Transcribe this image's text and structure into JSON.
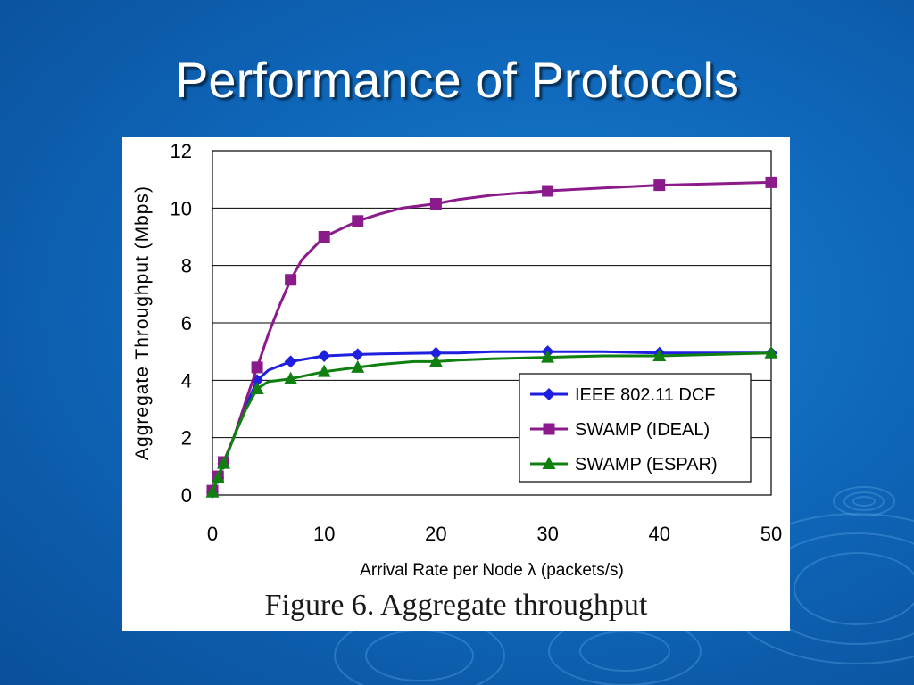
{
  "slide": {
    "title": "Performance of Protocols",
    "background_color": "#0f68bb"
  },
  "figure": {
    "caption": "Figure 6. Aggregate throughput"
  },
  "chart_data": {
    "type": "line",
    "title": "",
    "xlabel": "Arrival Rate per Node λ (packets/s)",
    "ylabel": "Aggregate Throughput (Mbps)",
    "xlim": [
      0,
      50
    ],
    "ylim": [
      0,
      12
    ],
    "xticks": [
      0,
      10,
      20,
      30,
      40,
      50
    ],
    "yticks": [
      0,
      2,
      4,
      6,
      8,
      10,
      12
    ],
    "grid": "horizontal",
    "legend_position": "bottom-right",
    "series": [
      {
        "name": "IEEE 802.11 DCF",
        "color": "#1f1fe0",
        "marker": "diamond",
        "x": [
          0,
          0.5,
          1,
          4,
          7,
          10,
          13,
          20,
          30,
          40,
          50
        ],
        "y": [
          0.1,
          0.6,
          1.1,
          4.0,
          4.65,
          4.85,
          4.9,
          4.95,
          5.0,
          4.95,
          4.95
        ],
        "curve_x": [
          0,
          0.5,
          1,
          2,
          3,
          4,
          5,
          7,
          10,
          13,
          15,
          20,
          22,
          25,
          30,
          35,
          40,
          45,
          50
        ],
        "curve_y": [
          0.1,
          0.6,
          1.1,
          2.1,
          3.1,
          4.0,
          4.35,
          4.65,
          4.85,
          4.9,
          4.92,
          4.95,
          4.95,
          5.0,
          5.0,
          5.0,
          4.95,
          4.95,
          4.95
        ]
      },
      {
        "name": "SWAMP (IDEAL)",
        "color": "#8b1a8b",
        "marker": "square",
        "x": [
          0,
          0.5,
          1,
          4,
          7,
          10,
          13,
          20,
          30,
          40,
          50
        ],
        "y": [
          0.15,
          0.65,
          1.15,
          4.45,
          7.5,
          9.0,
          9.55,
          10.15,
          10.6,
          10.8,
          10.9
        ],
        "curve_x": [
          0,
          0.5,
          1,
          2,
          3,
          4,
          5,
          6,
          7,
          8,
          10,
          13,
          15,
          17,
          20,
          22,
          25,
          30,
          35,
          40,
          45,
          50
        ],
        "curve_y": [
          0.15,
          0.65,
          1.15,
          2.1,
          3.3,
          4.45,
          5.6,
          6.6,
          7.5,
          8.2,
          9.0,
          9.55,
          9.8,
          10.0,
          10.15,
          10.3,
          10.45,
          10.6,
          10.7,
          10.8,
          10.85,
          10.9
        ]
      },
      {
        "name": "SWAMP (ESPAR)",
        "color": "#0f7f10",
        "marker": "triangle",
        "x": [
          0,
          0.5,
          1,
          4,
          7,
          10,
          13,
          20,
          30,
          40,
          50
        ],
        "y": [
          0.1,
          0.6,
          1.1,
          3.7,
          4.05,
          4.3,
          4.45,
          4.65,
          4.8,
          4.85,
          4.95
        ],
        "curve_x": [
          0,
          0.5,
          1,
          2,
          3,
          4,
          5,
          7,
          10,
          12,
          13,
          15,
          18,
          20,
          22,
          25,
          30,
          35,
          40,
          45,
          50
        ],
        "curve_y": [
          0.1,
          0.6,
          1.1,
          2.1,
          3.0,
          3.7,
          3.95,
          4.05,
          4.3,
          4.4,
          4.45,
          4.55,
          4.65,
          4.65,
          4.7,
          4.75,
          4.8,
          4.85,
          4.85,
          4.9,
          4.95
        ]
      }
    ]
  }
}
